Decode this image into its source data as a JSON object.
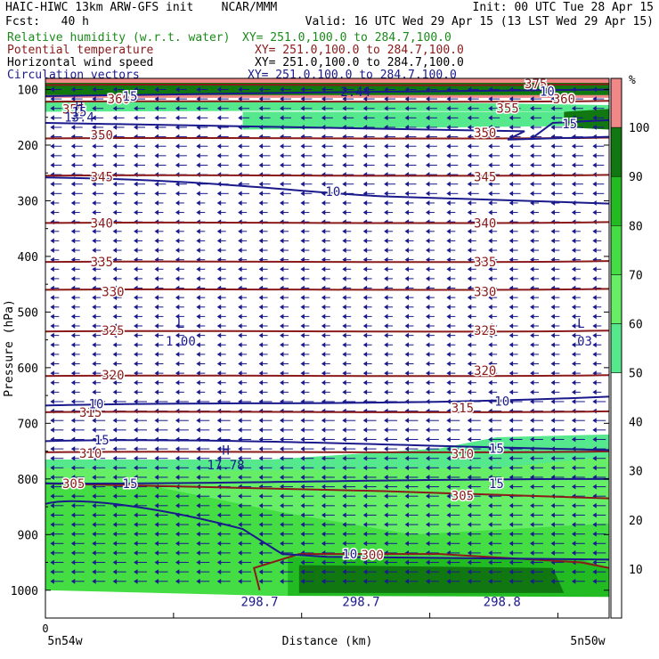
{
  "header": {
    "title": "HAIC-HIWC 13km ARW-GFS init",
    "org": "NCAR/MMM",
    "init": "Init: 00 UTC Tue 28 Apr 15",
    "fcst": "Fcst:   40 h",
    "valid": "Valid: 16 UTC Wed 29 Apr 15 (13 LST Wed 29 Apr 15)"
  },
  "legend": [
    {
      "label": "Relative humidity (w.r.t. water)",
      "coords": "XY= 251.0,100.0 to 284.7,100.0",
      "color": "#1a8a1a"
    },
    {
      "label": "Potential temperature",
      "coords": "XY= 251.0,100.0 to 284.7,100.0",
      "color": "#8b1a1a"
    },
    {
      "label": "Horizontal wind speed",
      "coords": "XY= 251.0,100.0 to 284.7,100.0",
      "color": "#000000"
    },
    {
      "label": "Circulation vectors",
      "coords": "XY= 251.0,100.0 to 284.7,100.0",
      "color": "#1a1a8c"
    }
  ],
  "chart_data": {
    "type": "cross-section",
    "ylabel": "Pressure (hPa)",
    "xlabel": "Distance (km)",
    "x_start_label": "5n54w",
    "x_end_label": "5n50w",
    "x_zero_label": "0",
    "y_ticks": [
      100,
      200,
      300,
      400,
      500,
      600,
      700,
      800,
      900,
      1000
    ],
    "ylim": [
      1050,
      80
    ],
    "colorbar": {
      "unit": "%",
      "ticks": [
        10,
        20,
        30,
        40,
        50,
        60,
        70,
        80,
        90,
        100
      ],
      "bands": [
        {
          "from": 0,
          "to": 50,
          "color": "#ffffff"
        },
        {
          "from": 50,
          "to": 60,
          "color": "#55e88c"
        },
        {
          "from": 60,
          "to": 70,
          "color": "#66ee66"
        },
        {
          "from": 70,
          "to": 80,
          "color": "#44dd44"
        },
        {
          "from": 80,
          "to": 90,
          "color": "#22bb22"
        },
        {
          "from": 90,
          "to": 100,
          "color": "#117711"
        },
        {
          "from": 100,
          "to": 110,
          "color": "#f08888"
        }
      ]
    },
    "theta_contours": [
      {
        "value": 375,
        "p": 92
      },
      {
        "value": 360,
        "p": 122
      },
      {
        "value": 350,
        "p": 188
      },
      {
        "value": 345,
        "p": 255
      },
      {
        "value": 340,
        "p": 340
      },
      {
        "value": 335,
        "p": 410
      },
      {
        "value": 330,
        "p": 460
      },
      {
        "value": 325,
        "p": 535
      },
      {
        "value": 320,
        "p": 615
      },
      {
        "value": 315,
        "p": 680
      },
      {
        "value": 310,
        "p": 752
      },
      {
        "value": 305,
        "p": 808
      },
      {
        "value": 300,
        "p": 940
      }
    ],
    "theta_labels": [
      {
        "text": "375",
        "x": 0.87,
        "p": 90
      },
      {
        "text": "360",
        "x": 0.13,
        "p": 117
      },
      {
        "text": "360",
        "x": 0.92,
        "p": 117
      },
      {
        "text": "355",
        "x": 0.05,
        "p": 135
      },
      {
        "text": "355",
        "x": 0.82,
        "p": 134
      },
      {
        "text": "350",
        "x": 0.1,
        "p": 182
      },
      {
        "text": "350",
        "x": 0.78,
        "p": 178
      },
      {
        "text": "345",
        "x": 0.1,
        "p": 257
      },
      {
        "text": "345",
        "x": 0.78,
        "p": 257
      },
      {
        "text": "340",
        "x": 0.1,
        "p": 340
      },
      {
        "text": "340",
        "x": 0.78,
        "p": 340
      },
      {
        "text": "335",
        "x": 0.1,
        "p": 410
      },
      {
        "text": "335",
        "x": 0.78,
        "p": 410
      },
      {
        "text": "330",
        "x": 0.12,
        "p": 463
      },
      {
        "text": "330",
        "x": 0.78,
        "p": 463
      },
      {
        "text": "325",
        "x": 0.12,
        "p": 533
      },
      {
        "text": "325",
        "x": 0.78,
        "p": 533
      },
      {
        "text": "320",
        "x": 0.12,
        "p": 613
      },
      {
        "text": "320",
        "x": 0.78,
        "p": 605
      },
      {
        "text": "315",
        "x": 0.08,
        "p": 680
      },
      {
        "text": "315",
        "x": 0.74,
        "p": 672
      },
      {
        "text": "310",
        "x": 0.08,
        "p": 754
      },
      {
        "text": "310",
        "x": 0.74,
        "p": 755
      },
      {
        "text": "305",
        "x": 0.05,
        "p": 808
      },
      {
        "text": "305",
        "x": 0.74,
        "p": 830
      },
      {
        "text": "300",
        "x": 0.58,
        "p": 936
      }
    ],
    "wind_speed_contours": [
      {
        "text": "10",
        "x": 0.51,
        "p": 283
      },
      {
        "text": "10",
        "x": 0.09,
        "p": 665
      },
      {
        "text": "10",
        "x": 0.81,
        "p": 660
      },
      {
        "text": "15",
        "x": 0.1,
        "p": 730
      },
      {
        "text": "15",
        "x": 0.8,
        "p": 745
      },
      {
        "text": "15",
        "x": 0.15,
        "p": 808
      },
      {
        "text": "15",
        "x": 0.8,
        "p": 808
      },
      {
        "text": "10",
        "x": 0.54,
        "p": 935
      },
      {
        "text": "10",
        "x": 0.89,
        "p": 103
      },
      {
        "text": "15",
        "x": 0.93,
        "p": 162
      },
      {
        "text": "15",
        "x": 0.15,
        "p": 112
      },
      {
        "text": "15",
        "x": 0.06,
        "p": 140
      }
    ],
    "extrema_labels": [
      {
        "text": "L",
        "x": 0.24,
        "p": 520
      },
      {
        "text": "1.00",
        "x": 0.24,
        "p": 552
      },
      {
        "text": "L",
        "x": 0.95,
        "p": 520
      },
      {
        "text": ".03",
        "x": 0.95,
        "p": 552
      },
      {
        "text": "H",
        "x": 0.32,
        "p": 748
      },
      {
        "text": "17.78",
        "x": 0.32,
        "p": 775
      },
      {
        "text": "H",
        "x": 0.06,
        "p": 130
      },
      {
        "text": "13.4",
        "x": 0.06,
        "p": 150
      },
      {
        "text": "2.44",
        "x": 0.55,
        "p": 104
      },
      {
        "text": "298.7",
        "x": 0.38,
        "p": 1020
      },
      {
        "text": "298.7",
        "x": 0.56,
        "p": 1020
      },
      {
        "text": "298.8",
        "x": 0.81,
        "p": 1020
      }
    ]
  },
  "colors": {
    "theta": "#8b1a1a",
    "wind": "#1a1a8c",
    "vectors": "#1a1a8c"
  }
}
